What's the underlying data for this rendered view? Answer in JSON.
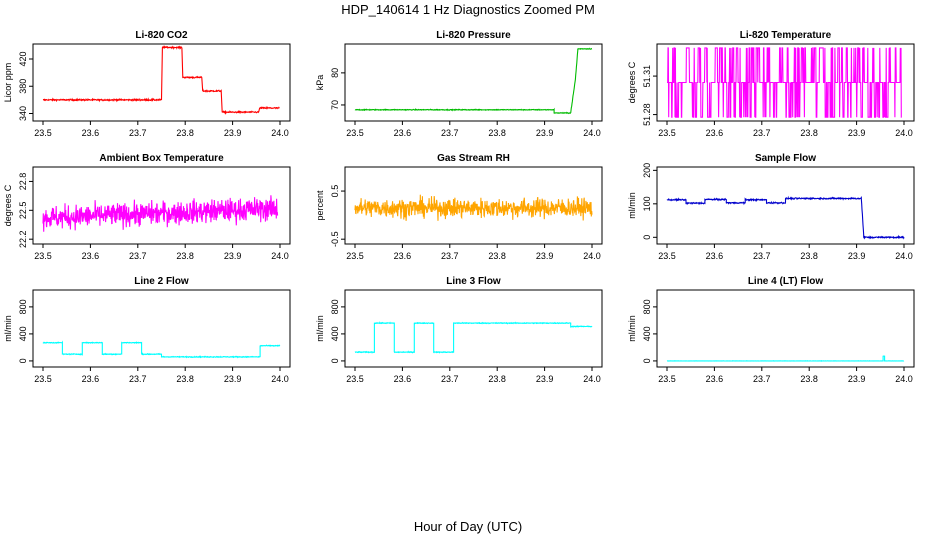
{
  "page": {
    "title": "HDP_140614  1 Hz Diagnostics Zoomed PM",
    "xlabel": "Hour of Day (UTC)"
  },
  "chart_data": [
    {
      "type": "line",
      "title": "Li-820 CO2",
      "ylabel": "Licor ppm",
      "color": "#ff0000",
      "xlim": [
        23.5,
        24.0
      ],
      "ylim": [
        329,
        442
      ],
      "yticks": [
        340,
        380,
        420
      ],
      "xticks": [
        23.5,
        23.6,
        23.7,
        23.8,
        23.9,
        24.0
      ],
      "noise": 1.0,
      "gaps": [],
      "segments": [
        {
          "x": [
            23.5,
            23.75
          ],
          "y": 360
        },
        {
          "x": [
            23.752,
            23.793
          ],
          "y": 437
        },
        {
          "x": [
            23.795,
            23.835
          ],
          "y": 393
        },
        {
          "x": [
            23.837,
            23.876
          ],
          "y": 373
        },
        {
          "x": [
            23.878,
            23.955
          ],
          "y": 342
        },
        {
          "x": [
            23.957,
            23.999
          ],
          "y": 348
        }
      ]
    },
    {
      "type": "line",
      "title": "Li-820 Pressure",
      "ylabel": "kPa",
      "color": "#00bb00",
      "xlim": [
        23.5,
        24.0
      ],
      "ylim": [
        65,
        89
      ],
      "yticks": [
        70,
        80
      ],
      "xticks": [
        23.5,
        23.6,
        23.7,
        23.8,
        23.9,
        24.0
      ],
      "noise": 0.12,
      "gaps": [],
      "segments": [
        {
          "x": [
            23.5,
            23.92
          ],
          "y": 68.5
        },
        {
          "x": [
            23.92,
            23.955
          ],
          "y": 67.5
        },
        {
          "x": [
            23.955,
            23.965
          ],
          "y": [
            67.5,
            78
          ]
        },
        {
          "x": [
            23.965,
            23.97
          ],
          "y": [
            78,
            87
          ]
        },
        {
          "x": [
            23.97,
            24.0
          ],
          "y": 87.5
        }
      ]
    },
    {
      "type": "line",
      "title": "Li-820 Temperature",
      "ylabel": "degrees C",
      "color": "#ff00ff",
      "xlim": [
        23.5,
        24.0
      ],
      "ylim": [
        51.275,
        51.335
      ],
      "yticks": [
        51.28,
        51.31
      ],
      "xticks": [
        23.5,
        23.6,
        23.7,
        23.8,
        23.9,
        24.0
      ],
      "toggle": {
        "low": 51.278,
        "mid": 51.305,
        "high": 51.332,
        "rate": 0.5
      },
      "segments": [
        {
          "x": [
            23.5,
            23.995
          ]
        }
      ]
    },
    {
      "type": "line",
      "title": "Ambient Box Temperature",
      "ylabel": "degrees C",
      "color": "#ff00ff",
      "xlim": [
        23.5,
        24.0
      ],
      "ylim": [
        22.15,
        22.95
      ],
      "yticks": [
        22.2,
        22.5,
        22.8
      ],
      "xticks": [
        23.5,
        23.6,
        23.7,
        23.8,
        23.9,
        24.0
      ],
      "noise": 0.12,
      "gaps": [],
      "segments": [
        {
          "x": [
            23.5,
            23.995
          ],
          "y": [
            22.42,
            22.52
          ]
        }
      ]
    },
    {
      "type": "line",
      "title": "Gas Stream RH",
      "ylabel": "percent",
      "color": "#ffa500",
      "xlim": [
        23.5,
        24.0
      ],
      "ylim": [
        -0.6,
        1.0
      ],
      "yticks": [
        -0.5,
        0.5
      ],
      "xticks": [
        23.5,
        23.6,
        23.7,
        23.8,
        23.9,
        24.0
      ],
      "noise": 0.2,
      "gaps": [],
      "segments": [
        {
          "x": [
            23.5,
            24.0
          ],
          "y": 0.15
        }
      ]
    },
    {
      "type": "line",
      "title": "Sample Flow",
      "ylabel": "ml/min",
      "color": "#0000cc",
      "xlim": [
        23.5,
        24.0
      ],
      "ylim": [
        -20,
        210
      ],
      "yticks": [
        0,
        100,
        200
      ],
      "xticks": [
        23.5,
        23.6,
        23.7,
        23.8,
        23.9,
        24.0
      ],
      "noise": 2.0,
      "gaps": [],
      "segments": [
        {
          "x": [
            23.5,
            23.54
          ],
          "y": 112
        },
        {
          "x": [
            23.54,
            23.58
          ],
          "y": 102
        },
        {
          "x": [
            23.58,
            23.625
          ],
          "y": 113
        },
        {
          "x": [
            23.625,
            23.665
          ],
          "y": 103
        },
        {
          "x": [
            23.665,
            23.71
          ],
          "y": 112
        },
        {
          "x": [
            23.71,
            23.75
          ],
          "y": 103
        },
        {
          "x": [
            23.75,
            23.91
          ],
          "y": 116
        },
        {
          "x": [
            23.91,
            23.915
          ],
          "y": [
            116,
            5
          ]
        },
        {
          "x": [
            23.915,
            24.0
          ],
          "y": 0
        }
      ]
    },
    {
      "type": "line",
      "title": "Line 2 Flow",
      "ylabel": "ml/min",
      "color": "#00ffff",
      "xlim": [
        23.5,
        24.0
      ],
      "ylim": [
        -90,
        1050
      ],
      "yticks": [
        0,
        400,
        800
      ],
      "xticks": [
        23.5,
        23.6,
        23.7,
        23.8,
        23.9,
        24.0
      ],
      "noise": 6,
      "gaps": [],
      "segments": [
        {
          "x": [
            23.5,
            23.541
          ],
          "y": 270
        },
        {
          "x": [
            23.541,
            23.583
          ],
          "y": 100
        },
        {
          "x": [
            23.583,
            23.625
          ],
          "y": 270
        },
        {
          "x": [
            23.625,
            23.666
          ],
          "y": 100
        },
        {
          "x": [
            23.666,
            23.708
          ],
          "y": 270
        },
        {
          "x": [
            23.708,
            23.75
          ],
          "y": 100
        },
        {
          "x": [
            23.75,
            23.958
          ],
          "y": 60
        },
        {
          "x": [
            23.958,
            24.0
          ],
          "y": 225
        }
      ]
    },
    {
      "type": "line",
      "title": "Line 3 Flow",
      "ylabel": "ml/min",
      "color": "#00ffff",
      "xlim": [
        23.5,
        24.0
      ],
      "ylim": [
        -90,
        1050
      ],
      "yticks": [
        0,
        400,
        800
      ],
      "xticks": [
        23.5,
        23.6,
        23.7,
        23.8,
        23.9,
        24.0
      ],
      "noise": 6,
      "gaps": [],
      "segments": [
        {
          "x": [
            23.5,
            23.541
          ],
          "y": 130
        },
        {
          "x": [
            23.541,
            23.583
          ],
          "y": 560
        },
        {
          "x": [
            23.583,
            23.625
          ],
          "y": 130
        },
        {
          "x": [
            23.625,
            23.666
          ],
          "y": 560
        },
        {
          "x": [
            23.666,
            23.708
          ],
          "y": 130
        },
        {
          "x": [
            23.708,
            23.955
          ],
          "y": 560
        },
        {
          "x": [
            23.955,
            24.0
          ],
          "y": 510
        }
      ]
    },
    {
      "type": "line",
      "title": "Line 4 (LT) Flow",
      "ylabel": "ml/min",
      "color": "#00ffff",
      "xlim": [
        23.5,
        24.0
      ],
      "ylim": [
        -90,
        1050
      ],
      "yticks": [
        0,
        400,
        800
      ],
      "xticks": [
        23.5,
        23.6,
        23.7,
        23.8,
        23.9,
        24.0
      ],
      "noise": 1.5,
      "gaps": [],
      "segments": [
        {
          "x": [
            23.5,
            23.956
          ],
          "y": 0
        },
        {
          "x": [
            23.956,
            23.959
          ],
          "y": 70
        },
        {
          "x": [
            23.959,
            24.0
          ],
          "y": 0
        }
      ]
    }
  ]
}
